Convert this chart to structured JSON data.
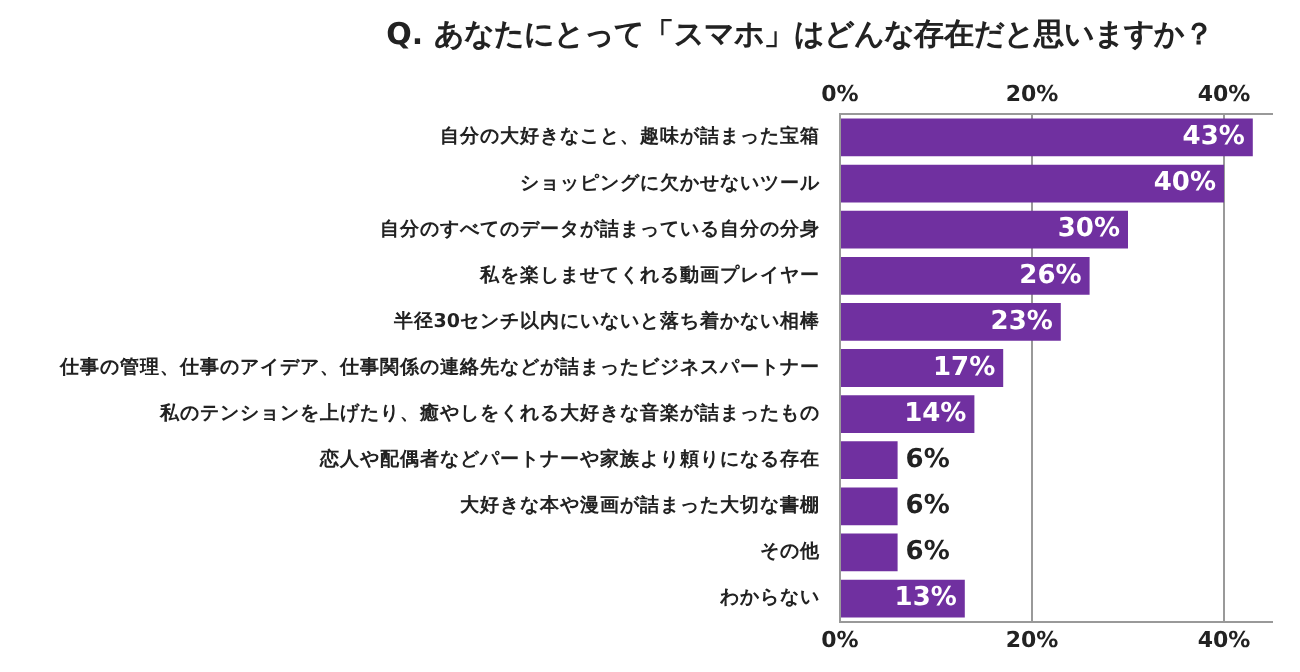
{
  "chart_data": {
    "type": "bar",
    "orientation": "horizontal",
    "title": "Q. あなたにとって「スマホ」はどんな存在だと思いますか？",
    "categories": [
      "自分の大好きなこと、趣味が詰まった宝箱",
      "ショッピングに欠かせないツール",
      "自分のすべてのデータが詰まっている自分の分身",
      "私を楽しませてくれる動画プレイヤー",
      "半径30センチ以内にいないと落ち着かない相棒",
      "仕事の管理、仕事のアイデア、仕事関係の連絡先などが詰まったビジネスパートナー",
      "私のテンションを上げたり、癒やしをくれる大好きな音楽が詰まったもの",
      "恋人や配偶者などパートナーや家族より頼りになる存在",
      "大好きな本や漫画が詰まった大切な書棚",
      "その他",
      "わからない"
    ],
    "values": [
      43,
      40,
      30,
      26,
      23,
      17,
      14,
      6,
      6,
      6,
      13
    ],
    "value_labels": [
      "43%",
      "40%",
      "30%",
      "26%",
      "23%",
      "17%",
      "14%",
      "6%",
      "6%",
      "6%",
      "13%"
    ],
    "color": "#7030a0",
    "xlim": [
      0,
      45
    ],
    "xticks": [
      {
        "value": 0,
        "label": "0%"
      },
      {
        "value": 20,
        "label": "20%"
      },
      {
        "value": 40,
        "label": "40%"
      }
    ],
    "x2lim": [
      0,
      45
    ],
    "x2ticks": [
      {
        "value": 0,
        "label": "0%"
      },
      {
        "value": 20,
        "label": "20%"
      },
      {
        "value": 40,
        "label": "40%"
      }
    ],
    "grid": "x",
    "legend": false
  }
}
